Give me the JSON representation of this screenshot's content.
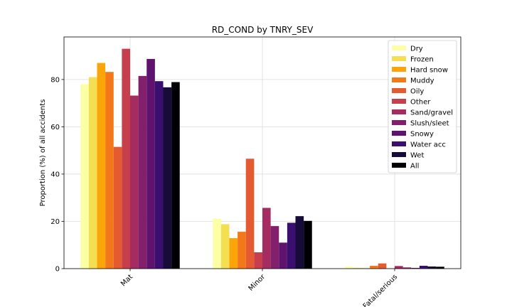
{
  "chart_data": {
    "type": "bar",
    "title": "RD_COND by TNRY_SEV",
    "xlabel": "",
    "ylabel": "Proportion (%) of all accidents",
    "categories": [
      "Mat",
      "Minor",
      "Fatal/serious"
    ],
    "ylim": [
      0,
      98
    ],
    "yticks": [
      0,
      20,
      40,
      60,
      80
    ],
    "grid": true,
    "legend_position": "top-right",
    "series": [
      {
        "name": "Dry",
        "color": "#fcffa4",
        "values": [
          78.0,
          21.2,
          0.8
        ]
      },
      {
        "name": "Frozen",
        "color": "#f4df53",
        "values": [
          81.0,
          18.8,
          0.3
        ]
      },
      {
        "name": "Hard snow",
        "color": "#fca50a",
        "values": [
          87.0,
          12.9,
          0.2
        ]
      },
      {
        "name": "Muddy",
        "color": "#f37819",
        "values": [
          83.2,
          15.6,
          1.2
        ]
      },
      {
        "name": "Oily",
        "color": "#e45a31",
        "values": [
          51.5,
          46.5,
          2.2
        ]
      },
      {
        "name": "Other",
        "color": "#c73e4c",
        "values": [
          93.0,
          6.9,
          0.1
        ]
      },
      {
        "name": "Sand/gravel",
        "color": "#a52c60",
        "values": [
          73.2,
          25.7,
          1.1
        ]
      },
      {
        "name": "Slush/sleet",
        "color": "#82206c",
        "values": [
          81.5,
          18.0,
          0.5
        ]
      },
      {
        "name": "Snowy",
        "color": "#5f136e",
        "values": [
          88.7,
          11.0,
          0.3
        ]
      },
      {
        "name": "Water acc",
        "color": "#3b0f70",
        "values": [
          79.3,
          19.4,
          1.2
        ]
      },
      {
        "name": "Wet",
        "color": "#160b39",
        "values": [
          76.7,
          22.2,
          0.9
        ]
      },
      {
        "name": "All",
        "color": "#000004",
        "values": [
          78.9,
          20.2,
          0.8
        ]
      }
    ]
  }
}
